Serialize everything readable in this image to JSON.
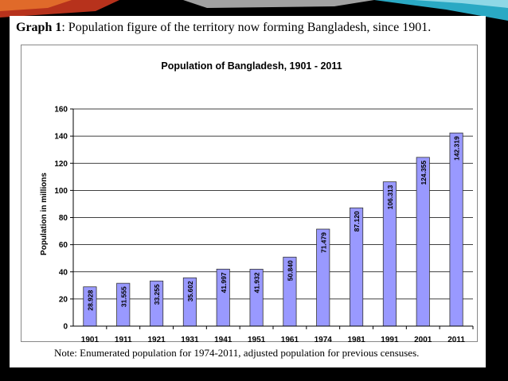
{
  "caption": {
    "label": "Graph 1",
    "text": ": Population figure of the territory now forming Bangladesh, since 1901."
  },
  "note": "Note: Enumerated population for 1974-2011, adjusted population for previous censuses.",
  "chart_data": {
    "type": "bar",
    "title": "Population of Bangladesh, 1901 - 2011",
    "xlabel": "",
    "ylabel": "Population in millions",
    "ylim": [
      0,
      160
    ],
    "yticks": [
      0,
      20,
      40,
      60,
      80,
      100,
      120,
      140,
      160
    ],
    "grid": true,
    "legend": "none",
    "bar_color": "#9999ff",
    "categories": [
      "1901",
      "1911",
      "1921",
      "1931",
      "1941",
      "1951",
      "1961",
      "1974",
      "1981",
      "1991",
      "2001",
      "2011"
    ],
    "values": [
      28.928,
      31.555,
      33.255,
      35.602,
      41.997,
      41.932,
      50.84,
      71.479,
      87.12,
      106.313,
      124.355,
      142.319
    ],
    "data_labels": [
      "28.928",
      "31.555",
      "33.255",
      "35.602",
      "41.997",
      "41.932",
      "50.840",
      "71.479",
      "87.120",
      "106.313",
      "124.355",
      "142.319"
    ]
  }
}
